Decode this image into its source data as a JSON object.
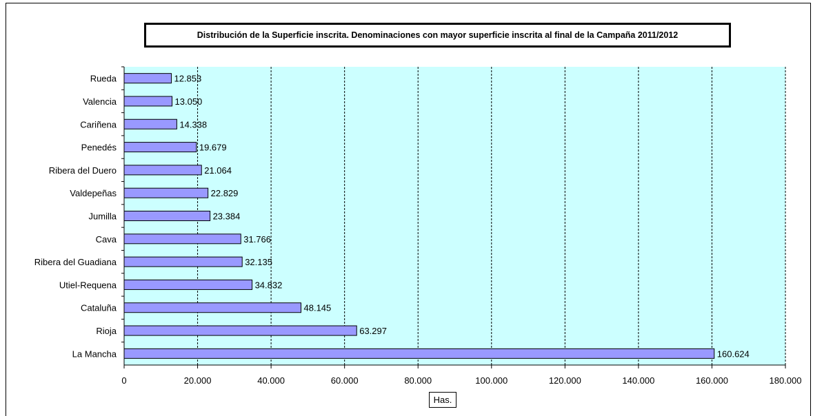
{
  "chart_data": {
    "type": "bar",
    "orientation": "horizontal",
    "title": "Distribución de la Superficie inscrita. Denominaciones con mayor superficie inscrita al final de la Campaña 2011/2012",
    "xlabel": "Has.",
    "ylabel": "",
    "xlim": [
      0,
      180000
    ],
    "x_ticks": [
      "0",
      "20.000",
      "40.000",
      "60.000",
      "80.000",
      "100.000",
      "120.000",
      "140.000",
      "160.000",
      "180.000"
    ],
    "categories": [
      "Rueda",
      "Valencia",
      "Cariñena",
      "Penedés",
      "Ribera del Duero",
      "Valdepeñas",
      "Jumilla",
      "Cava",
      "Ribera del Guadiana",
      "Utiel-Requena",
      "Cataluña",
      "Rioja",
      "La Mancha"
    ],
    "values": [
      12853,
      13050,
      14338,
      19679,
      21064,
      22829,
      23384,
      31766,
      32135,
      34832,
      48145,
      63297,
      160624
    ],
    "value_labels": [
      "12.853",
      "13.050",
      "14.338",
      "19.679",
      "21.064",
      "22.829",
      "23.384",
      "31.766",
      "32.135",
      "34.832",
      "48.145",
      "63.297",
      "160.624"
    ],
    "grid": "vertical-dashed",
    "colors": {
      "plot_background": "#ccffff",
      "bar_fill": "#9999ff",
      "bar_stroke": "#000000"
    }
  }
}
